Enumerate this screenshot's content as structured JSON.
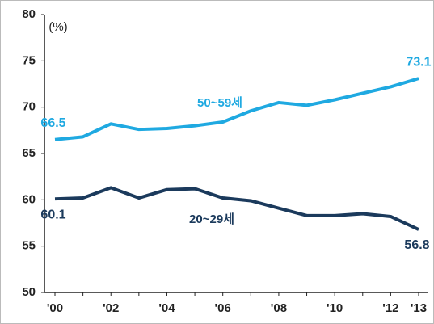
{
  "chart_data": {
    "type": "line",
    "unit_label": "(%)",
    "categories": [
      "'00",
      null,
      "'02",
      null,
      "'04",
      null,
      "'06",
      null,
      "'08",
      null,
      "'10",
      null,
      "'12",
      "'13"
    ],
    "series": [
      {
        "name": "50~59세",
        "color": "#1fa9e1",
        "values": [
          66.5,
          66.8,
          68.2,
          67.6,
          67.7,
          68.0,
          68.4,
          69.6,
          70.5,
          70.2,
          70.8,
          71.5,
          72.2,
          73.1
        ]
      },
      {
        "name": "20~29세",
        "color": "#1b3a5c",
        "values": [
          60.1,
          60.2,
          61.3,
          60.2,
          61.1,
          61.2,
          60.2,
          59.9,
          59.1,
          58.3,
          58.3,
          58.5,
          58.2,
          56.8
        ]
      }
    ],
    "ylim": [
      50,
      80
    ],
    "yticks": [
      50,
      55,
      60,
      65,
      70,
      75,
      80
    ],
    "grid": false
  }
}
